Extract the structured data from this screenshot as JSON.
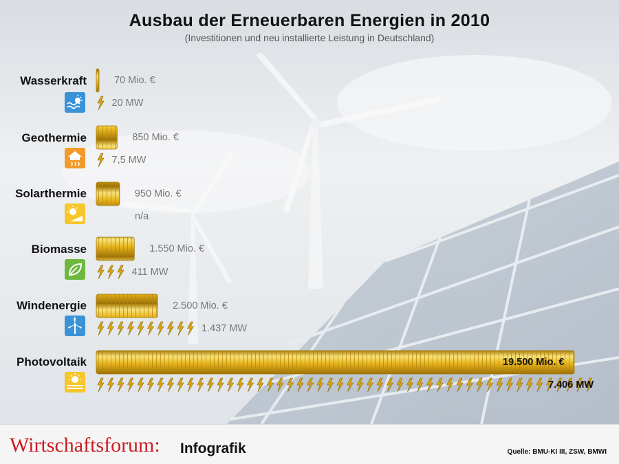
{
  "header": {
    "title": "Ausbau der Erneuerbaren Energien in 2010",
    "subtitle": "(Investitionen und neu installierte Leistung in Deutschland)"
  },
  "footer": {
    "brand": "Wirtschaftsforum:",
    "brand_sub": "Infografik",
    "source": "Quelle: BMU-KI III, ZSW, BMWI"
  },
  "colors": {
    "gold": "#e8b51c",
    "gold_light": "#f8e27a",
    "icon_blue": "#3a93d6",
    "icon_orange": "#f29a2a",
    "icon_yellow": "#f7c62a",
    "icon_green": "#6fb83f",
    "brand_red": "#cc1b22"
  },
  "chart_data": {
    "type": "bar",
    "title": "Ausbau der Erneuerbaren Energien in 2010",
    "subtitle": "(Investitionen und neu installierte Leistung in Deutschland)",
    "categories": [
      "Wasserkraft",
      "Geothermie",
      "Solarthermie",
      "Biomasse",
      "Windenergie",
      "Photovoltaik"
    ],
    "icons": [
      "water-sun-icon",
      "house-heat-icon",
      "sun-panel-icon",
      "leaf-icon",
      "wind-turbine-icon",
      "solar-module-icon"
    ],
    "series": [
      {
        "name": "Investitionen",
        "unit": "Mio. €",
        "values": [
          70,
          850,
          950,
          1550,
          2500,
          19500
        ],
        "labels": [
          "70 Mio. €",
          "850 Mio. €",
          "950 Mio. €",
          "1.550 Mio. €",
          "2.500 Mio. €",
          "19.500 Mio. €"
        ]
      },
      {
        "name": "Leistung",
        "unit": "MW",
        "values": [
          20,
          7.5,
          null,
          411,
          1437,
          7406
        ],
        "labels": [
          "20 MW",
          "7,5 MW",
          "n/a",
          "411 MW",
          "1.437 MW",
          "7.406 MW"
        ]
      }
    ],
    "grid": false,
    "legend": "none"
  }
}
